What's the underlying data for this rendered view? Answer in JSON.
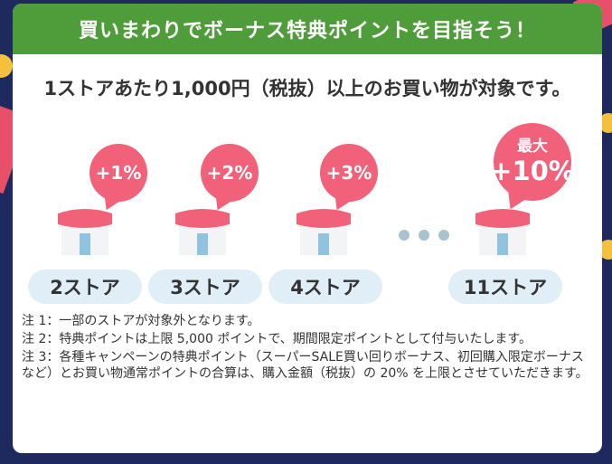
{
  "banner": {
    "title": "買いまわりでボーナス特典ポイントを目指そう！"
  },
  "subtitle": "1ストアあたり1,000円（税抜）以上のお買い物が対象です。",
  "stores": [
    {
      "bonus": "+1%",
      "label": "2ストア"
    },
    {
      "bonus": "+2%",
      "label": "3ストア"
    },
    {
      "bonus": "+3%",
      "label": "4ストア"
    },
    {
      "bonus_top": "最大",
      "bonus": "+10%",
      "label": "11ストア"
    }
  ],
  "notes": [
    "注 1：一部のストアが対象外となります。",
    "注 2：特典ポイントは上限 5,000 ポイントで、期間限定ポイントとして付与いたします。",
    "注 3：各種キャンペーンの特典ポイント（スーパーSALE買い回りボーナス、初回購入限定ボーナスなど）とお買い物通常ポイントの合算は、購入金額（税抜）の 20% を上限とさせていただきます。"
  ],
  "colors": {
    "banner": "#4f9d3a",
    "bubble": "#f2617a",
    "pill": "#dfeef7",
    "background": "#1e2a5e"
  }
}
